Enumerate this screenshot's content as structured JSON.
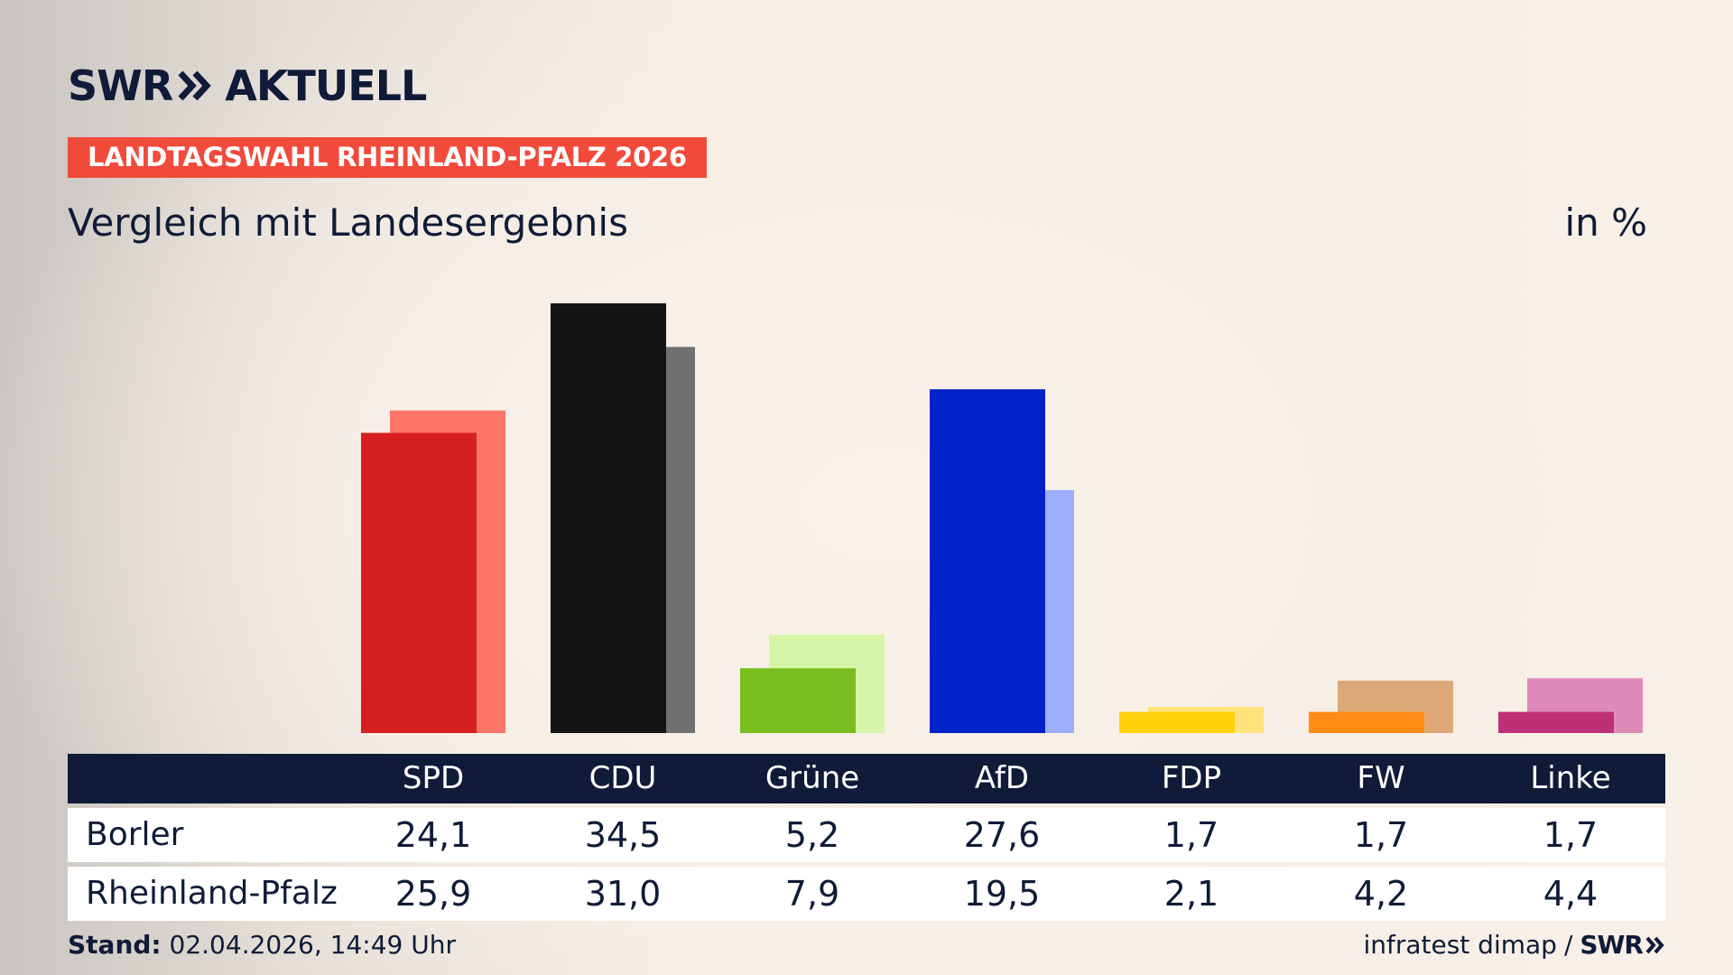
{
  "header": {
    "brand": "SWR",
    "product": "AKTUELL",
    "election": "LANDTAGSWAHL RHEINLAND-PFALZ 2026",
    "subtitle": "Vergleich mit Landesergebnis",
    "unit": "in %"
  },
  "footer": {
    "stand_label": "Stand:",
    "stand_value": "02.04.2026, 14:49 Uhr",
    "source": "infratest dimap",
    "separator": "/",
    "brand": "SWR"
  },
  "colors": {
    "navy": "#0f1b38",
    "badge": "#f24a3b"
  },
  "chart_data": {
    "type": "bar",
    "categories": [
      "SPD",
      "CDU",
      "Grüne",
      "AfD",
      "FDP",
      "FW",
      "Linke"
    ],
    "series": [
      {
        "name": "Borler",
        "values": [
          24.1,
          34.5,
          5.2,
          27.6,
          1.7,
          1.7,
          1.7
        ],
        "display": [
          "24,1",
          "34,5",
          "5,2",
          "27,6",
          "1,7",
          "1,7",
          "1,7"
        ],
        "colors": [
          "#d61f1f",
          "#141414",
          "#78be1e",
          "#0021c8",
          "#ffd10a",
          "#ff8c14",
          "#be3075"
        ]
      },
      {
        "name": "Rheinland-Pfalz",
        "values": [
          25.9,
          31.0,
          7.9,
          19.5,
          2.1,
          4.2,
          4.4
        ],
        "display": [
          "25,9",
          "31,0",
          "7,9",
          "19,5",
          "2,1",
          "4,2",
          "4,4"
        ],
        "colors": [
          "#ff7469",
          "#707070",
          "#d6f5a8",
          "#9eaefc",
          "#ffe37a",
          "#dda877",
          "#de8bb9"
        ]
      }
    ],
    "ylim": [
      0,
      34.5
    ],
    "grid": false,
    "legend": "table-below"
  }
}
